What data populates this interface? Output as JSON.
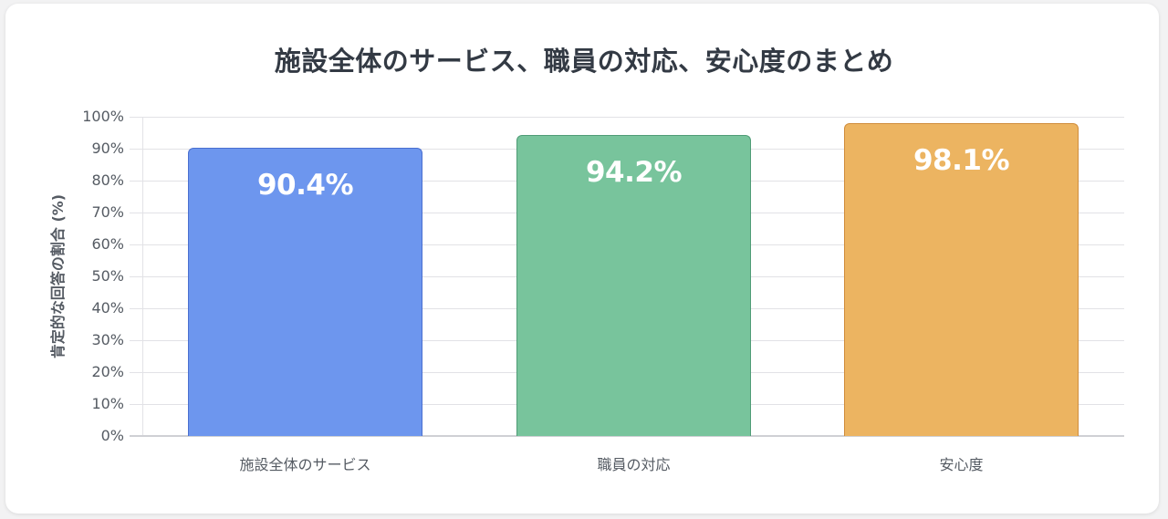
{
  "chart_data": {
    "type": "bar",
    "title": "施設全体のサービス、職員の対応、安心度のまとめ",
    "xlabel": "",
    "ylabel": "肯定的な回答の割合 (%)",
    "ylim": [
      0,
      100
    ],
    "yticks": [
      "0%",
      "10%",
      "20%",
      "30%",
      "40%",
      "50%",
      "60%",
      "70%",
      "80%",
      "90%",
      "100%"
    ],
    "grid": true,
    "legend": null,
    "categories": [
      "施設全体のサービス",
      "職員の対応",
      "安心度"
    ],
    "values": [
      90.4,
      94.2,
      98.1
    ],
    "data_labels": [
      "90.4%",
      "94.2%",
      "98.1%"
    ],
    "colors": [
      "#6d96ee",
      "#78c49c",
      "#ecb461"
    ],
    "border_colors": [
      "#4a6fd0",
      "#4f9c76",
      "#d08d3c"
    ]
  }
}
